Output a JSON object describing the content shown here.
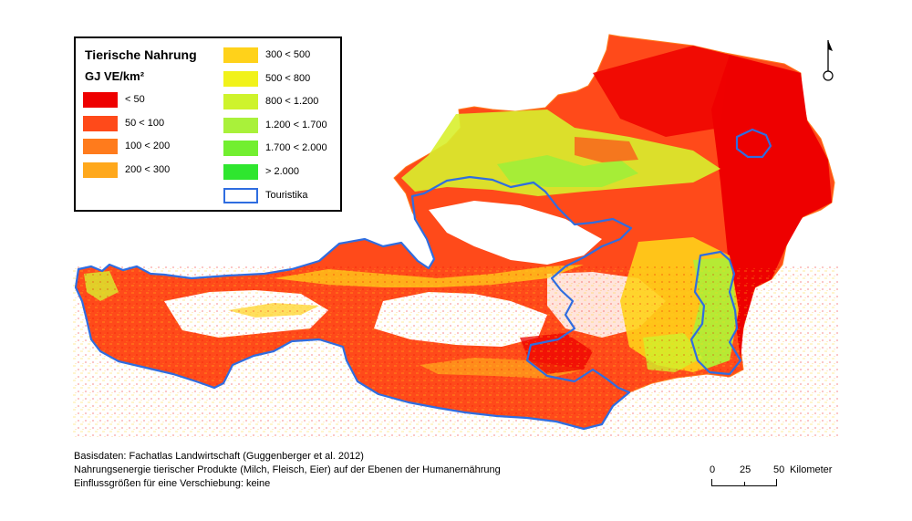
{
  "legend": {
    "title": "Tierische Nahrung",
    "unit": "GJ VE/km²",
    "items": [
      {
        "label": "< 50",
        "color": "#ee0000"
      },
      {
        "label": "50 < 100",
        "color": "#ff4a1a"
      },
      {
        "label": "100 < 200",
        "color": "#ff7b1c"
      },
      {
        "label": "200 < 300",
        "color": "#ffa81c"
      },
      {
        "label": "300 < 500",
        "color": "#ffd21a"
      },
      {
        "label": "500 < 800",
        "color": "#f1f21a"
      },
      {
        "label": "800 < 1.200",
        "color": "#cef32c"
      },
      {
        "label": "1.200 < 1.700",
        "color": "#a9f13a"
      },
      {
        "label": "1.700 < 2.000",
        "color": "#72ef30"
      },
      {
        "label": "> 2.000",
        "color": "#2fe62f"
      },
      {
        "label": "Touristika",
        "color": "#2f6de0"
      }
    ]
  },
  "credits": {
    "line1": "Basisdaten: Fachatlas Landwirtschaft (Guggenberger et al. 2012)",
    "line2": "Nahrungsenergie  tierischer Produkte (Milch, Fleisch, Eier) auf der Ebenen der Humanernährung",
    "line3": "Einflussgrößen für eine Verschiebung: keine"
  },
  "scale": {
    "t0": "0",
    "t25": "25",
    "t50": "50",
    "unit": "Kilometer"
  },
  "map": {
    "country_fill": "#ff4a1a",
    "touristika_color": "#2f6de0"
  }
}
